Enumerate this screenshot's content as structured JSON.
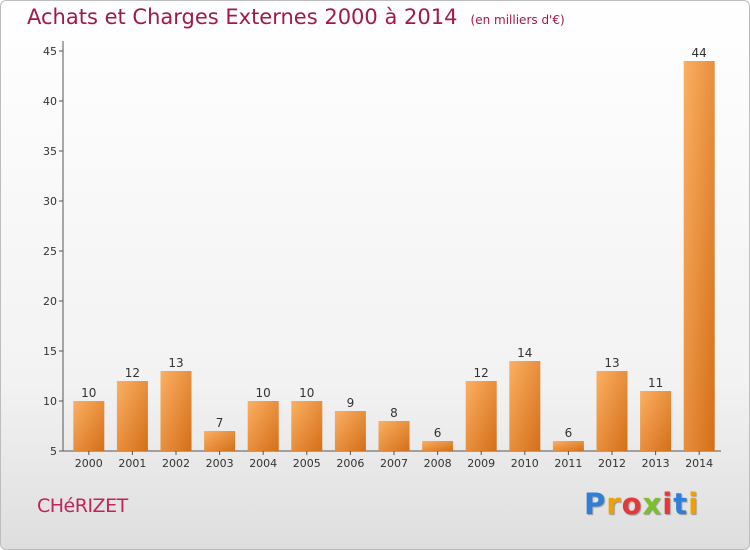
{
  "title": "Achats et Charges Externes 2000 à 2014",
  "subtitle": "(en milliers d'€)",
  "city": "CHéRIZET",
  "logo": {
    "text": "Proxiti",
    "letters": [
      "P",
      "r",
      "o",
      "x",
      "i",
      "t",
      "i"
    ]
  },
  "colors": {
    "title": "#a3184a",
    "bar_light": "#f9a552",
    "bar_dark": "#d9741c",
    "axis": "#555555"
  },
  "chart_data": {
    "type": "bar",
    "categories": [
      "2000",
      "2001",
      "2002",
      "2003",
      "2004",
      "2005",
      "2006",
      "2007",
      "2008",
      "2009",
      "2010",
      "2011",
      "2012",
      "2013",
      "2014"
    ],
    "values": [
      10,
      12,
      13,
      7,
      10,
      10,
      9,
      8,
      6,
      12,
      14,
      6,
      13,
      11,
      44
    ],
    "data_labels": [
      "10",
      "12",
      "13",
      "7",
      "10",
      "10",
      "9",
      "8",
      "6",
      "12",
      "14",
      "6",
      "13",
      "11",
      "44"
    ],
    "yticks": [
      5,
      10,
      15,
      20,
      25,
      30,
      35,
      40,
      45
    ],
    "ylim": [
      5,
      46
    ],
    "grid": false,
    "legend": "none"
  }
}
